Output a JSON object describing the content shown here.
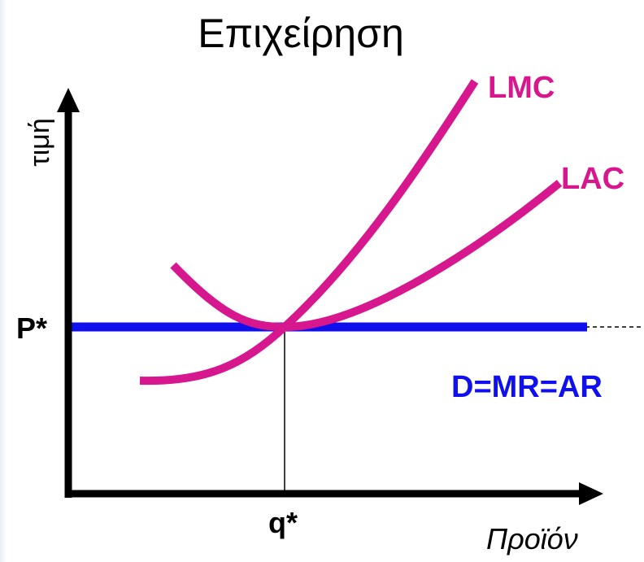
{
  "title": "Επιχείρηση",
  "y_axis_label": "τιμή",
  "x_axis_label": "Προϊόν",
  "price_label": "P*",
  "quantity_label": "q*",
  "curves": {
    "lmc": {
      "label": "LMC",
      "color": "#d6178e"
    },
    "lac": {
      "label": "LAC",
      "color": "#d6178e"
    },
    "demand": {
      "label": "D=MR=AR",
      "color": "#1010ee"
    }
  },
  "axis_color": "#000000"
}
